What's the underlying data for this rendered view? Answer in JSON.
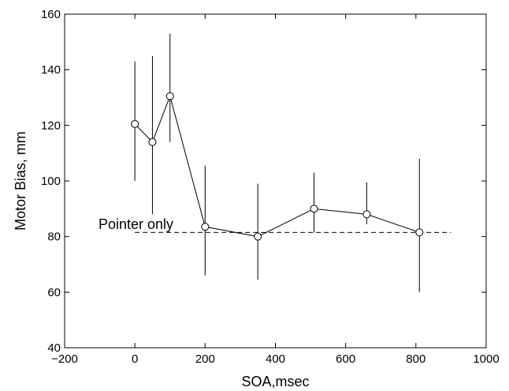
{
  "chart_data": {
    "type": "line",
    "title": "",
    "xlabel": "SOA,msec",
    "ylabel": "Motor Bias, mm",
    "xlim": [
      -200,
      1000
    ],
    "ylim": [
      40,
      160
    ],
    "xticks": [
      -200,
      0,
      200,
      400,
      600,
      800,
      1000
    ],
    "yticks": [
      40,
      60,
      80,
      100,
      120,
      140,
      160
    ],
    "xtick_labels": [
      "−200",
      "0",
      "200",
      "400",
      "600",
      "800",
      "1000"
    ],
    "ytick_labels": [
      "40",
      "60",
      "80",
      "100",
      "120",
      "140",
      "160"
    ],
    "grid": false,
    "series": [
      {
        "x": [
          0,
          50,
          100,
          200,
          350,
          510,
          660,
          810
        ],
        "y": [
          120.5,
          114,
          130.5,
          83.5,
          80,
          90,
          88,
          81.5
        ],
        "err_low": [
          100,
          88,
          114,
          66,
          64.5,
          81.5,
          84.5,
          60
        ],
        "err_high": [
          143,
          145,
          153,
          105.5,
          99,
          103,
          99.5,
          108
        ],
        "marker": "open-circle",
        "line": "solid"
      }
    ],
    "reference_line": {
      "label": "Pointer only",
      "y": 81.5,
      "x_range": [
        0,
        900
      ],
      "line": "dashed"
    }
  }
}
